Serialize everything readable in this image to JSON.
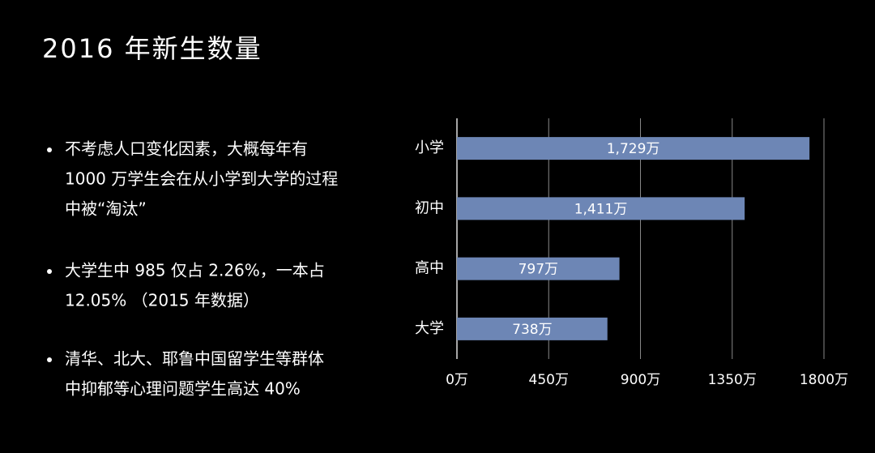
{
  "title": "2016 年新生数量",
  "bullets": [
    [
      "不考虑人口变化因素，大概每年有",
      "1000 万学生会在从小学到大学的过程",
      "中被“淘汰”"
    ],
    [
      "大学生中 985 仅占 2.26%，一本占",
      "12.05% （2015 年数据）"
    ],
    [
      "清华、北大、耶鲁中国留学生等群体",
      "中抑郁等心理问题学生高达 40%"
    ]
  ],
  "chart_data": {
    "type": "bar",
    "orientation": "horizontal",
    "categories": [
      "小学",
      "初中",
      "高中",
      "大学"
    ],
    "values": [
      1729,
      1411,
      797,
      738
    ],
    "value_labels": [
      "1,729万",
      "1,411万",
      "797万",
      "738万"
    ],
    "color": "#6d86b5",
    "xlim": [
      0,
      1800
    ],
    "xticks": [
      {
        "value": 0,
        "label": "0万"
      },
      {
        "value": 450,
        "label": "450万"
      },
      {
        "value": 900,
        "label": "900万"
      },
      {
        "value": 1350,
        "label": "1350万"
      },
      {
        "value": 1800,
        "label": "1800万"
      }
    ],
    "grid": true
  }
}
